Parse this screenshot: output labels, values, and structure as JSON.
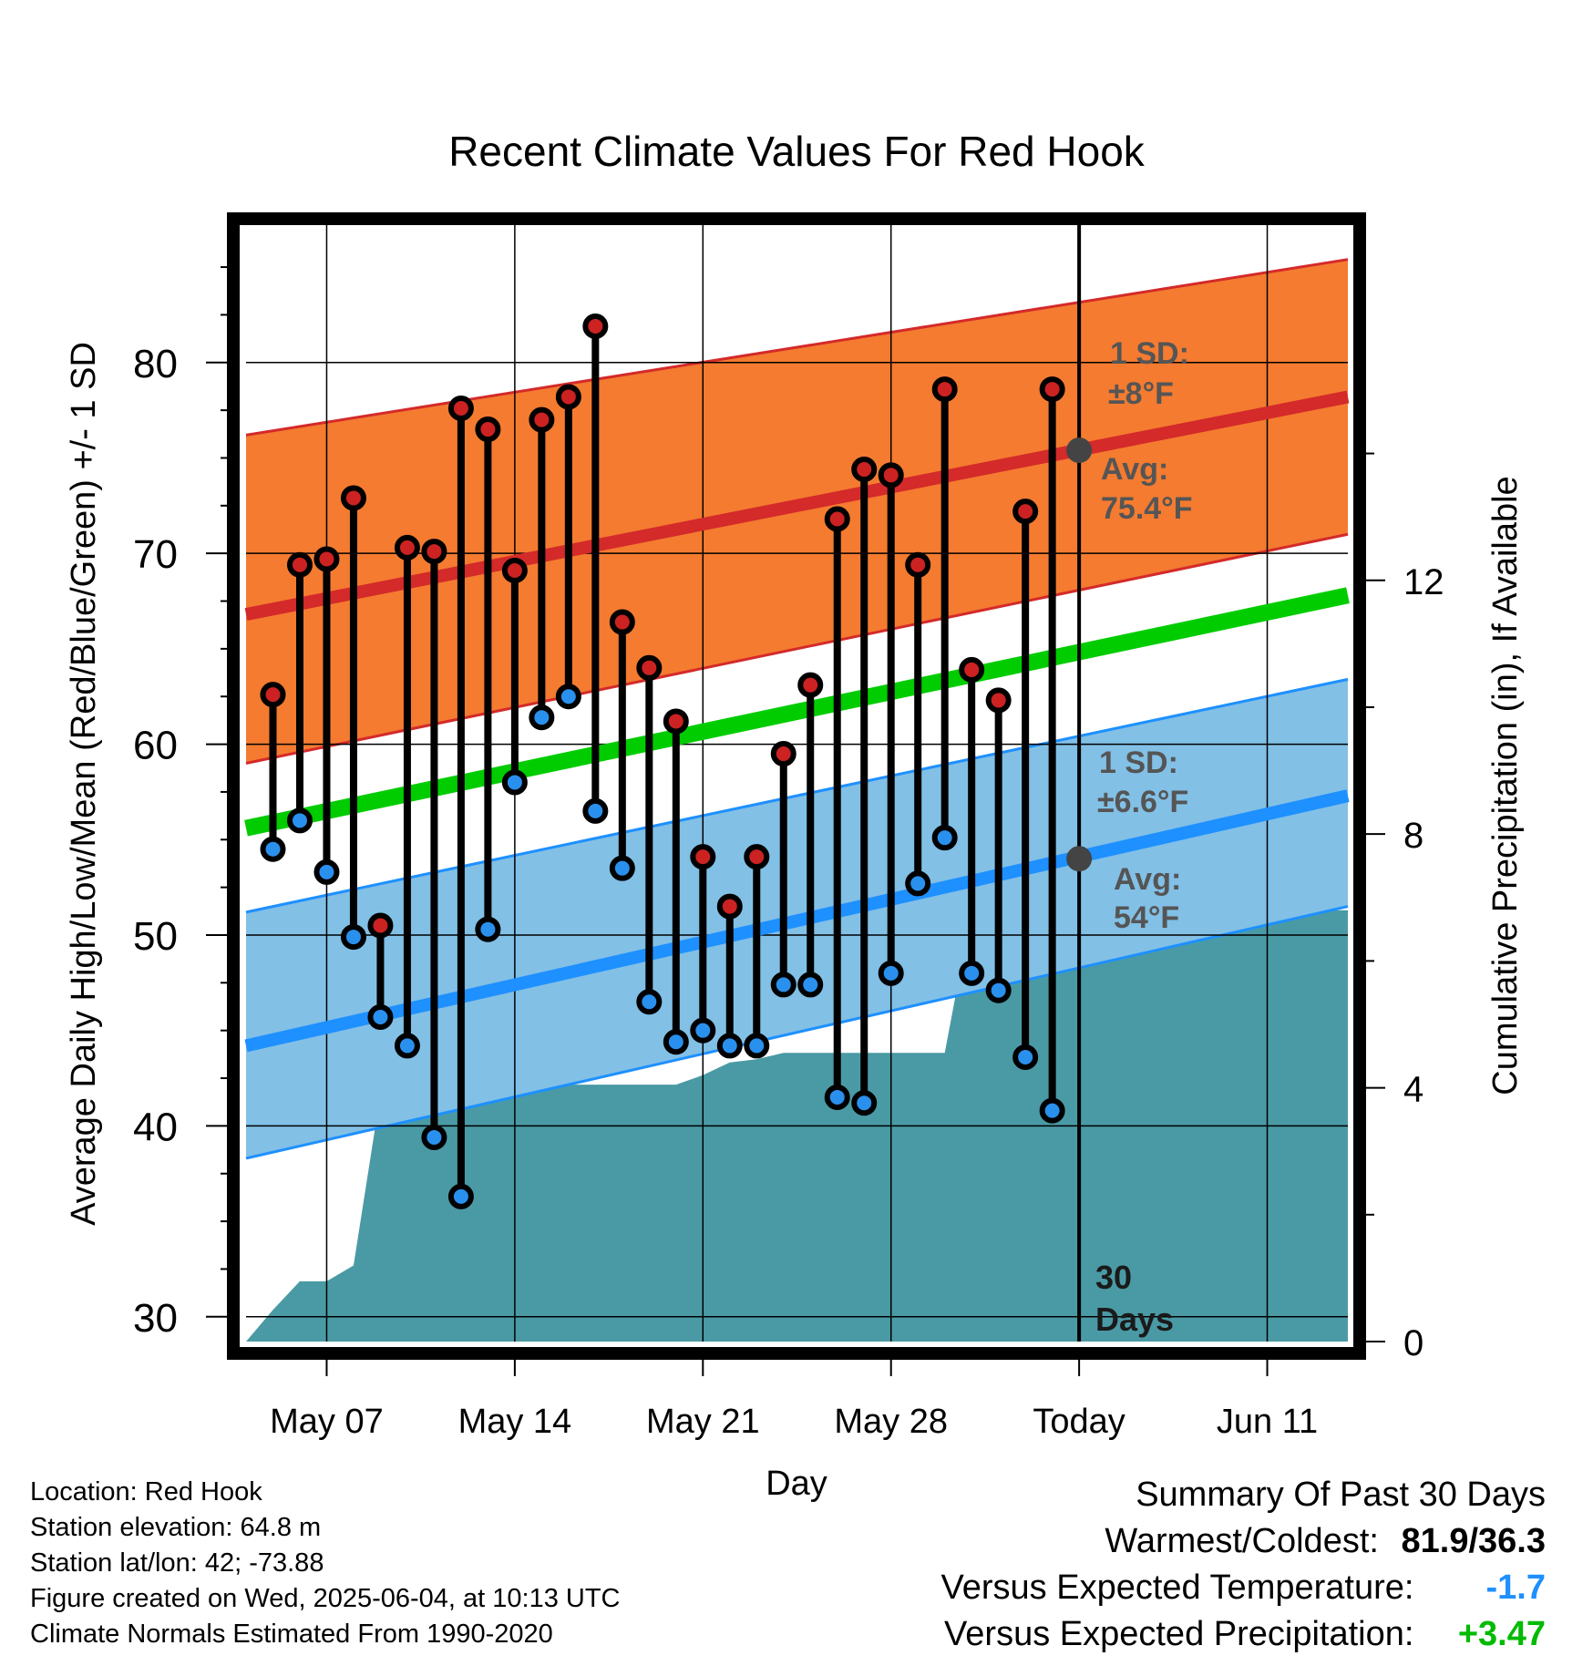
{
  "chart_data": {
    "type": "line",
    "title": "Recent Climate Values For Red Hook",
    "xlabel": "Day",
    "ylabel": "Average Daily High/Low/Mean (Red/Blue/Green) +/- 1 SD",
    "y2label": "Cumulative Precipitation (in), If Available",
    "ylim": [
      28.7,
      87.2
    ],
    "y2lim": [
      0,
      17.6
    ],
    "xlim": [
      "2025-05-04",
      "2025-06-14"
    ],
    "x_ticks": [
      {
        "date": "2025-05-07",
        "label": "May 07"
      },
      {
        "date": "2025-05-14",
        "label": "May 14"
      },
      {
        "date": "2025-05-21",
        "label": "May 21"
      },
      {
        "date": "2025-05-28",
        "label": "May 28"
      },
      {
        "date": "2025-06-04",
        "label": "Today"
      },
      {
        "date": "2025-06-11",
        "label": "Jun 11"
      }
    ],
    "y_ticks": [
      30,
      40,
      50,
      60,
      70,
      80
    ],
    "y2_ticks": [
      0,
      4,
      8,
      12
    ],
    "grid": true,
    "today": "2025-06-04",
    "today_label": "30 Days",
    "daily": {
      "dates": [
        "2025-05-05",
        "2025-05-06",
        "2025-05-07",
        "2025-05-08",
        "2025-05-09",
        "2025-05-10",
        "2025-05-11",
        "2025-05-12",
        "2025-05-13",
        "2025-05-14",
        "2025-05-15",
        "2025-05-16",
        "2025-05-17",
        "2025-05-18",
        "2025-05-19",
        "2025-05-20",
        "2025-05-21",
        "2025-05-22",
        "2025-05-23",
        "2025-05-24",
        "2025-05-25",
        "2025-05-26",
        "2025-05-27",
        "2025-05-28",
        "2025-05-29",
        "2025-05-30",
        "2025-05-31",
        "2025-06-01",
        "2025-06-02",
        "2025-06-03"
      ],
      "high": [
        62.6,
        69.4,
        69.7,
        72.9,
        50.5,
        70.3,
        70.1,
        77.6,
        76.5,
        69.1,
        77.0,
        78.2,
        81.9,
        66.4,
        64.0,
        61.2,
        54.1,
        51.5,
        54.1,
        59.5,
        63.1,
        71.8,
        74.4,
        74.1,
        69.4,
        78.6,
        63.9,
        62.3,
        72.2,
        78.6
      ],
      "low": [
        54.5,
        56.0,
        53.3,
        49.9,
        45.7,
        44.2,
        39.4,
        36.3,
        50.3,
        58.0,
        61.4,
        62.5,
        56.5,
        53.5,
        46.5,
        44.4,
        45.0,
        44.2,
        44.2,
        47.4,
        47.4,
        41.5,
        41.2,
        48.0,
        52.7,
        55.1,
        48.0,
        47.1,
        43.6,
        40.8
      ]
    },
    "normals": {
      "dates": [
        "2025-05-04",
        "2025-06-14"
      ],
      "avg_high": [
        66.8,
        78.2
      ],
      "avg_high_sd_band": [
        [
          59.0,
          76.2
        ],
        [
          71.0,
          85.4
        ]
      ],
      "avg_low": [
        44.2,
        57.3
      ],
      "avg_low_sd_band": [
        [
          38.3,
          51.2
        ],
        [
          51.5,
          63.4
        ]
      ],
      "avg_mean": [
        55.6,
        67.8
      ]
    },
    "precipitation": {
      "dates": [
        "2025-05-04",
        "2025-05-05",
        "2025-05-06",
        "2025-05-07",
        "2025-05-08",
        "2025-05-09",
        "2025-05-10",
        "2025-05-11",
        "2025-05-12",
        "2025-05-13",
        "2025-05-14",
        "2025-05-15",
        "2025-05-16",
        "2025-05-17",
        "2025-05-18",
        "2025-05-19",
        "2025-05-20",
        "2025-05-21",
        "2025-05-22",
        "2025-05-23",
        "2025-05-24",
        "2025-05-25",
        "2025-05-26",
        "2025-05-27",
        "2025-05-28",
        "2025-05-29",
        "2025-05-30",
        "2025-05-31",
        "2025-06-01",
        "2025-06-02",
        "2025-06-03",
        "2025-06-04",
        "2025-06-14"
      ],
      "cumulative": [
        0,
        0.5,
        0.95,
        0.95,
        1.2,
        3.9,
        3.9,
        3.9,
        3.9,
        3.9,
        4.05,
        4.05,
        4.05,
        4.05,
        4.05,
        4.05,
        4.05,
        4.2,
        4.4,
        4.45,
        4.55,
        4.55,
        4.55,
        4.55,
        4.55,
        4.55,
        4.55,
        6.8,
        6.8,
        6.8,
        6.8,
        6.8,
        6.8
      ]
    },
    "annotations": {
      "high_sd_label": "1 SD:",
      "high_sd_value": "±8°F",
      "high_avg_label": "Avg:",
      "high_avg_value": "75.4°F",
      "high_avg_today": 75.4,
      "low_sd_label": "1 SD:",
      "low_sd_value": "±6.6°F",
      "low_avg_label": "Avg:",
      "low_avg_value": "54°F",
      "low_avg_today": 54.0
    },
    "colors": {
      "high_band": "#f47b30",
      "high_line": "#d42a2a",
      "low_band": "#82c0e6",
      "low_line": "#1e90ff",
      "mean_line": "#00cc00",
      "precip": "#4a9aa5",
      "high_dot": "#cc2222",
      "low_dot": "#2a90ee",
      "today_dot": "#444444",
      "annotation_text": "#555555"
    }
  },
  "info": {
    "location": "Location: Red Hook",
    "elevation": "Station elevation: 64.8 m",
    "latlon": "Station lat/lon: 42; -73.88",
    "created": "Figure created on Wed, 2025-06-04, at 10:13 UTC",
    "normals": "Climate Normals Estimated From 1990-2020"
  },
  "summary": {
    "title": "Summary Of Past 30 Days",
    "warm_cold_label": "Warmest/Coldest:",
    "warm_cold_value": "81.9/36.3",
    "temp_label": "Versus Expected Temperature:",
    "temp_value": "-1.7",
    "temp_color": "#1e90ff",
    "precip_label": "Versus Expected Precipitation:",
    "precip_value": "+3.47",
    "precip_color": "#00bb00"
  }
}
